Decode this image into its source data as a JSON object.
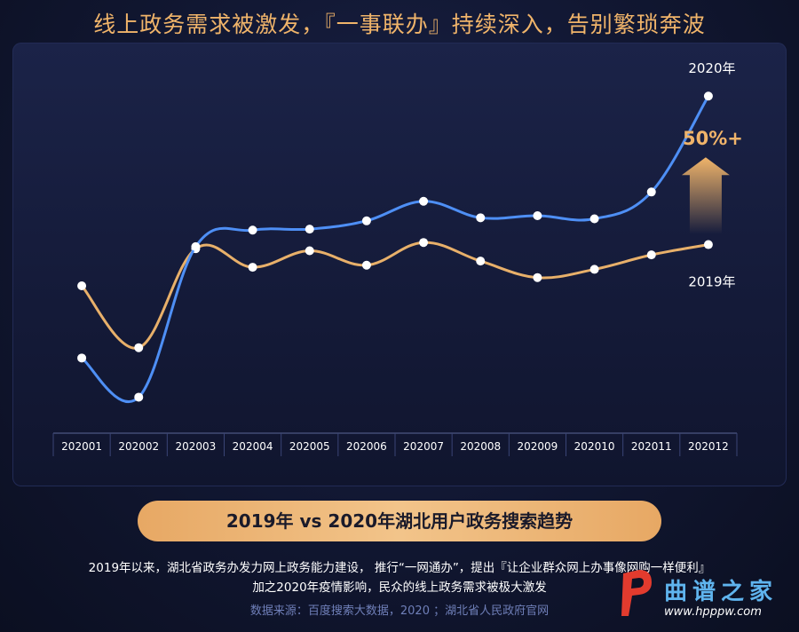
{
  "title": "线上政务需求被激发，『一事联办』持续深入，告别繁琐奔波",
  "colors": {
    "series_2020": "#4e8ff5",
    "series_2019": "#e8b06a",
    "accent": "#f0b46a"
  },
  "chart_data": {
    "type": "line",
    "categories": [
      "202001",
      "202002",
      "202003",
      "202004",
      "202005",
      "202006",
      "202007",
      "202008",
      "202009",
      "202010",
      "202011",
      "202012"
    ],
    "series": [
      {
        "name": "2020年",
        "values": [
          33,
          14,
          87,
          95,
          95.5,
          99.5,
          109,
          101,
          102,
          100.5,
          113.5,
          160
        ]
      },
      {
        "name": "2019年",
        "values": [
          68,
          38,
          86,
          77,
          85,
          78,
          89,
          80,
          72,
          76,
          83,
          88
        ]
      }
    ],
    "ylim": [
      0,
      170
    ],
    "annotation": "50%+",
    "grid": false
  },
  "footer": {
    "pill_label": "2019年 vs 2020年湖北用户政务搜索趋势",
    "line1": "2019年以来，湖北省政务办发力网上政务能力建设， 推行“一网通办”，提出『让企业群众网上办事像网购一样便利』",
    "line2": "加之2020年疫情影响，民众的线上政务需求被极大激发",
    "source": "数据来源：百度搜索大数据，2020 ；湖北省人民政府官网"
  },
  "watermark": {
    "name": "曲谱之家",
    "url": "www.hpppw.com"
  }
}
